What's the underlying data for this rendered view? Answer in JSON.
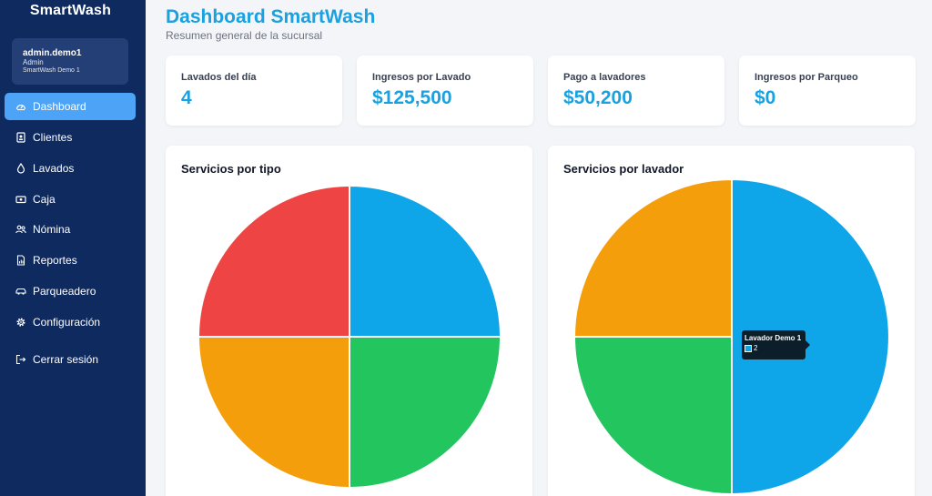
{
  "sidebar": {
    "brand": "SmartWash",
    "user": {
      "name": "admin.demo1",
      "role": "Admin",
      "branch": "SmartWash Demo 1"
    },
    "items": [
      {
        "label": "Dashboard",
        "icon": "gauge-icon",
        "active": true
      },
      {
        "label": "Clientes",
        "icon": "contact-card-icon",
        "active": false
      },
      {
        "label": "Lavados",
        "icon": "water-drop-icon",
        "active": false
      },
      {
        "label": "Caja",
        "icon": "cash-icon",
        "active": false
      },
      {
        "label": "Nómina",
        "icon": "people-icon",
        "active": false
      },
      {
        "label": "Reportes",
        "icon": "report-chart-icon",
        "active": false
      },
      {
        "label": "Parqueadero",
        "icon": "car-icon",
        "active": false
      },
      {
        "label": "Configuración",
        "icon": "gear-icon",
        "active": false
      },
      {
        "label": "Cerrar sesión",
        "icon": "logout-icon",
        "active": false
      }
    ]
  },
  "header": {
    "title": "Dashboard SmartWash",
    "subtitle": "Resumen general de la sucursal"
  },
  "kpis": [
    {
      "label": "Lavados del día",
      "value": "4"
    },
    {
      "label": "Ingresos por Lavado",
      "value": "$125,500"
    },
    {
      "label": "Pago a lavadores",
      "value": "$50,200"
    },
    {
      "label": "Ingresos por Parqueo",
      "value": "$0"
    }
  ],
  "colors": {
    "sidebar_bg": "#0f2a5f",
    "active_item": "#4da3f5",
    "accent": "#1aa1e0",
    "blue": "#0ea5e9",
    "green": "#22c55e",
    "orange": "#f59e0b",
    "red": "#ef4444"
  },
  "chart_data": [
    {
      "type": "pie",
      "title": "Servicios por tipo",
      "values": [
        1,
        1,
        1,
        1
      ],
      "colors": [
        "#0ea5e9",
        "#22c55e",
        "#f59e0b",
        "#ef4444"
      ]
    },
    {
      "type": "pie",
      "title": "Servicios por lavador",
      "values": [
        2,
        1,
        1
      ],
      "colors": [
        "#0ea5e9",
        "#22c55e",
        "#f59e0b"
      ],
      "tooltip": {
        "label": "Lavador Demo 1",
        "value": "2",
        "color": "#0ea5e9"
      }
    }
  ]
}
